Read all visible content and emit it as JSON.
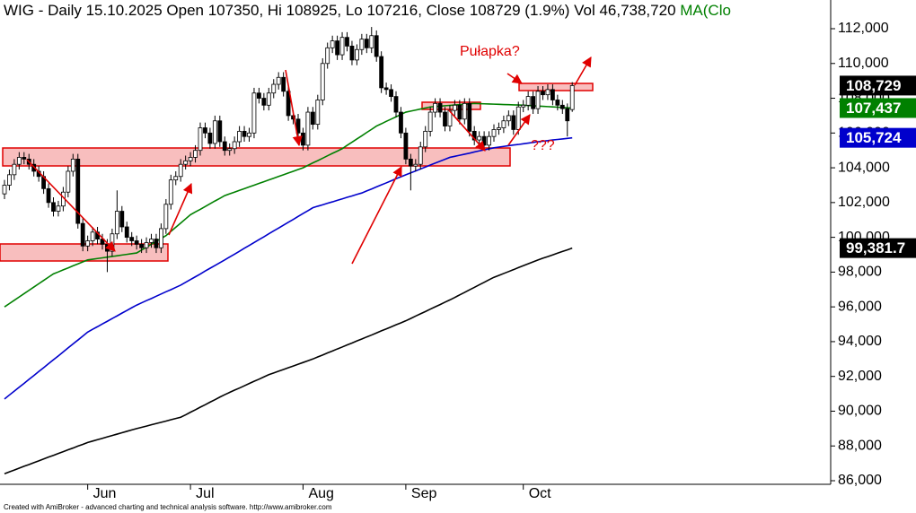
{
  "chart_data": {
    "type": "candlestick",
    "title": "WIG - Daily 15.10.2025 Open 107350, Hi 108925, Lo 107216, Close 108729 (1.9%) Vol 46,738,720",
    "title_suffix": "MA(Clo",
    "categories": [
      null,
      null,
      null,
      null,
      null,
      null,
      null,
      null,
      null,
      null,
      null,
      null,
      null,
      null,
      null,
      null,
      null,
      "Jun",
      null,
      null,
      null,
      null,
      null,
      null,
      null,
      null,
      null,
      null,
      null,
      null,
      null,
      null,
      null,
      null,
      null,
      null,
      null,
      null,
      "Jul",
      null,
      null,
      null,
      null,
      null,
      null,
      null,
      null,
      null,
      null,
      null,
      null,
      null,
      null,
      null,
      null,
      null,
      null,
      null,
      null,
      null,
      null,
      "Aug",
      null,
      null,
      null,
      null,
      null,
      null,
      null,
      null,
      null,
      null,
      null,
      null,
      null,
      null,
      null,
      null,
      null,
      null,
      null,
      null,
      "Sep",
      null,
      null,
      null,
      null,
      null,
      null,
      null,
      null,
      null,
      null,
      null,
      null,
      null,
      null,
      null,
      null,
      null,
      null,
      null,
      null,
      null,
      null,
      null,
      "Oct",
      null,
      null,
      null,
      null,
      null,
      null,
      null,
      null,
      null,
      null
    ],
    "open": [
      102500,
      103000,
      103600,
      104200,
      104600,
      104500,
      104200,
      103800,
      103500,
      102800,
      102000,
      101500,
      101800,
      102600,
      103800,
      104500,
      100800,
      99500,
      99800,
      100300,
      99900,
      99600,
      99200,
      100200,
      101500,
      100600,
      100000,
      99800,
      99600,
      99400,
      99700,
      99900,
      99400,
      100500,
      101900,
      103300,
      103500,
      104200,
      104400,
      104600,
      105000,
      106300,
      106000,
      105400,
      106700,
      105500,
      105000,
      105100,
      105500,
      106100,
      105800,
      106000,
      108300,
      108000,
      107600,
      108300,
      108800,
      109200,
      108400,
      107000,
      106800,
      106000,
      105300,
      107200,
      106500,
      107900,
      110000,
      110900,
      111300,
      110500,
      111500,
      111000,
      110200,
      110800,
      111400,
      110900,
      111600,
      110400,
      108600,
      108500,
      108100,
      107200,
      106000,
      104500,
      104100,
      104200,
      105200,
      106100,
      107200,
      107700,
      107200,
      106400,
      107300,
      107600,
      106800,
      107700,
      106100,
      105600,
      105800,
      105300,
      105800,
      106200,
      106300,
      106700,
      107000,
      106200,
      107500,
      107600,
      108100,
      107400,
      108400,
      108200,
      108500,
      107900,
      107600,
      107400,
      107350
    ],
    "high": [
      103300,
      103900,
      104500,
      104900,
      104900,
      104800,
      104500,
      104100,
      103800,
      103100,
      102300,
      102100,
      102900,
      104100,
      104800,
      104800,
      101100,
      100100,
      100600,
      100600,
      100200,
      99900,
      100500,
      102700,
      101800,
      100900,
      100300,
      100100,
      99900,
      100000,
      100200,
      100200,
      100800,
      102200,
      103600,
      103800,
      104500,
      104700,
      104900,
      105300,
      106600,
      106600,
      106300,
      107000,
      107000,
      105800,
      105400,
      105800,
      106400,
      106400,
      106300,
      108600,
      108600,
      108300,
      108600,
      109100,
      109500,
      109500,
      108700,
      107300,
      107100,
      106300,
      107500,
      107500,
      108200,
      110300,
      111200,
      111600,
      111600,
      111800,
      111800,
      111300,
      111100,
      111700,
      111700,
      112100,
      111900,
      110700,
      108900,
      108800,
      108400,
      107500,
      106300,
      104800,
      104500,
      105500,
      106400,
      107500,
      108000,
      108000,
      107500,
      107600,
      107900,
      107900,
      108000,
      108000,
      106400,
      106100,
      106100,
      106100,
      106500,
      106600,
      107000,
      107300,
      107300,
      107800,
      107900,
      108400,
      108400,
      108700,
      108700,
      108800,
      108800,
      108200,
      107900,
      107700,
      108925
    ],
    "low": [
      102200,
      102700,
      103300,
      103900,
      104200,
      103900,
      103500,
      103200,
      102500,
      101700,
      101200,
      101200,
      101500,
      102300,
      103500,
      100500,
      99200,
      99200,
      99500,
      99600,
      99300,
      98000,
      98900,
      99900,
      100300,
      99700,
      99500,
      99300,
      99100,
      99100,
      99400,
      99100,
      99100,
      100200,
      101600,
      103000,
      103200,
      103900,
      104100,
      104300,
      104700,
      105700,
      105100,
      105100,
      105200,
      104700,
      104700,
      104800,
      105200,
      105500,
      105500,
      105700,
      107700,
      107300,
      107300,
      108000,
      108500,
      108100,
      106700,
      106500,
      105700,
      105000,
      105000,
      106200,
      106200,
      107600,
      109700,
      110600,
      110200,
      110200,
      110700,
      109900,
      109900,
      110500,
      110600,
      110600,
      110100,
      108300,
      108200,
      107800,
      106900,
      105700,
      104200,
      102700,
      103800,
      103900,
      104900,
      105800,
      106900,
      106900,
      106100,
      106100,
      107000,
      106500,
      106500,
      105800,
      105300,
      105300,
      105000,
      105000,
      105500,
      105900,
      106000,
      106400,
      105900,
      105900,
      107200,
      107300,
      107100,
      107100,
      107900,
      107900,
      107600,
      107300,
      107100,
      105800,
      107216
    ],
    "close": [
      103000,
      103600,
      104200,
      104600,
      104500,
      104200,
      103800,
      103500,
      102800,
      102000,
      101500,
      101800,
      102600,
      103800,
      104500,
      100800,
      99500,
      99800,
      100300,
      99900,
      99600,
      99200,
      100200,
      101500,
      100600,
      100000,
      99800,
      99600,
      99400,
      99700,
      99900,
      99400,
      100500,
      101900,
      103300,
      103500,
      104200,
      104400,
      104600,
      105000,
      106300,
      106000,
      105400,
      106700,
      105500,
      105000,
      105100,
      105500,
      106100,
      105800,
      106000,
      108300,
      108000,
      107600,
      108300,
      108800,
      109200,
      108400,
      107000,
      106800,
      106000,
      105300,
      107200,
      106500,
      107900,
      110000,
      110900,
      111300,
      110500,
      111500,
      111000,
      110200,
      110800,
      111400,
      110900,
      111600,
      110400,
      108600,
      108500,
      108100,
      107200,
      106000,
      104500,
      104100,
      104200,
      105200,
      106100,
      107200,
      107700,
      107200,
      106400,
      107300,
      107600,
      106800,
      107700,
      106100,
      105600,
      105800,
      105300,
      105800,
      106200,
      106300,
      106700,
      107000,
      106200,
      107500,
      107600,
      108100,
      107400,
      108400,
      108200,
      108500,
      107900,
      107600,
      107400,
      106700,
      108729
    ],
    "up_color": "#ffffff",
    "down_color": "#000000",
    "series": [
      {
        "color": "#008000",
        "values": [
          96000,
          96190,
          96380,
          96570,
          96760,
          96950,
          97140,
          97330,
          97520,
          97710,
          97900,
          98010,
          98130,
          98240,
          98360,
          98470,
          98590,
          98700,
          98740,
          98780,
          98820,
          98860,
          98900,
          98940,
          98980,
          99020,
          99060,
          99100,
          99270,
          99430,
          99600,
          99770,
          99930,
          100100,
          100340,
          100580,
          100820,
          101060,
          101300,
          101460,
          101610,
          101770,
          101930,
          102090,
          102240,
          102400,
          102500,
          102600,
          102700,
          102800,
          102900,
          103000,
          103100,
          103200,
          103300,
          103400,
          103500,
          103600,
          103700,
          103800,
          103900,
          104000,
          104140,
          104280,
          104410,
          104550,
          104690,
          104830,
          104960,
          105100,
          105290,
          105470,
          105660,
          105840,
          106030,
          106210,
          106400,
          106530,
          106670,
          106800,
          106930,
          107070,
          107200,
          107260,
          107320,
          107380,
          107440,
          107500,
          107520,
          107540,
          107570,
          107590,
          107610,
          107630,
          107660,
          107680,
          107700,
          107690,
          107680,
          107670,
          107660,
          107650,
          107640,
          107630,
          107620,
          107610,
          107600,
          107584,
          107567,
          107551,
          107535,
          107519,
          107502,
          107486,
          107470,
          107453,
          107437
        ]
      },
      {
        "color": "#0000cc",
        "values": [
          90700,
          90930,
          91150,
          91380,
          91600,
          91830,
          92050,
          92280,
          92500,
          92730,
          92960,
          93180,
          93410,
          93640,
          93870,
          94090,
          94320,
          94550,
          94710,
          94860,
          95020,
          95170,
          95330,
          95480,
          95640,
          95790,
          95950,
          96100,
          96230,
          96360,
          96480,
          96610,
          96740,
          96870,
          96990,
          97120,
          97250,
          97410,
          97570,
          97730,
          97890,
          98060,
          98220,
          98380,
          98540,
          98700,
          98870,
          99030,
          99200,
          99370,
          99530,
          99700,
          99870,
          100030,
          100200,
          100370,
          100530,
          100700,
          100870,
          101030,
          101200,
          101370,
          101530,
          101700,
          101790,
          101870,
          101960,
          102040,
          102130,
          102210,
          102300,
          102380,
          102470,
          102550,
          102670,
          102780,
          102900,
          103020,
          103130,
          103250,
          103370,
          103480,
          103600,
          103710,
          103820,
          103930,
          104040,
          104160,
          104270,
          104380,
          104490,
          104600,
          104660,
          104720,
          104780,
          104840,
          104910,
          104970,
          105030,
          105090,
          105150,
          105190,
          105230,
          105270,
          105310,
          105340,
          105380,
          105420,
          105460,
          105500,
          105530,
          105560,
          105600,
          105630,
          105660,
          105690,
          105724
        ]
      },
      {
        "color": "#000000",
        "values": [
          86400,
          86510,
          86610,
          86720,
          86830,
          86930,
          87040,
          87140,
          87250,
          87360,
          87460,
          87570,
          87670,
          87780,
          87880,
          87990,
          88090,
          88200,
          88280,
          88360,
          88440,
          88520,
          88600,
          88680,
          88760,
          88840,
          88920,
          89000,
          89070,
          89140,
          89220,
          89290,
          89360,
          89430,
          89510,
          89580,
          89650,
          89790,
          89940,
          90080,
          90230,
          90370,
          90520,
          90660,
          90810,
          90950,
          91080,
          91210,
          91330,
          91460,
          91590,
          91720,
          91840,
          91970,
          92100,
          92200,
          92300,
          92400,
          92500,
          92600,
          92700,
          92800,
          92900,
          93000,
          93120,
          93230,
          93350,
          93460,
          93580,
          93690,
          93810,
          93920,
          94040,
          94150,
          94270,
          94380,
          94500,
          94620,
          94730,
          94850,
          94970,
          95080,
          95200,
          95330,
          95470,
          95600,
          95730,
          95870,
          96000,
          96130,
          96270,
          96400,
          96540,
          96690,
          96830,
          96980,
          97120,
          97270,
          97410,
          97560,
          97700,
          97810,
          97920,
          98030,
          98140,
          98260,
          98370,
          98480,
          98590,
          98700,
          98800,
          98890,
          98990,
          99090,
          99190,
          99280,
          99381.7
        ]
      }
    ],
    "price_labels": [
      {
        "value": 108729,
        "label": "108,729",
        "color": "#000000"
      },
      {
        "value": 107437,
        "label": "107,437",
        "color": "#008000"
      },
      {
        "value": 105724,
        "label": "105,724",
        "color": "#0000cc"
      },
      {
        "value": 99381.7,
        "label": "99,381.7",
        "color": "#000000"
      }
    ],
    "annotations": [
      "Pułapka?",
      "???"
    ],
    "ylim": [
      85794,
      113651
    ],
    "yticks": [
      {
        "value": 86000,
        "label": "86,000"
      },
      {
        "value": 88000,
        "label": "88,000"
      },
      {
        "value": 90000,
        "label": "90,000"
      },
      {
        "value": 92000,
        "label": "92,000"
      },
      {
        "value": 94000,
        "label": "94,000"
      },
      {
        "value": 96000,
        "label": "96,000"
      },
      {
        "value": 98000,
        "label": "98,000"
      },
      {
        "value": 100000,
        "label": "100,000"
      },
      {
        "value": 102000,
        "label": "102,000"
      },
      {
        "value": 104000,
        "label": "104,000"
      },
      {
        "value": 106000,
        "label": "106,000"
      },
      {
        "value": 108000,
        "label": "108,000"
      },
      {
        "value": 110000,
        "label": "110,000"
      },
      {
        "value": 112000,
        "label": "112,000"
      }
    ],
    "grid": false
  },
  "footer": "Created with AmiBroker - advanced charting and technical analysis software. http://www.amibroker.com"
}
